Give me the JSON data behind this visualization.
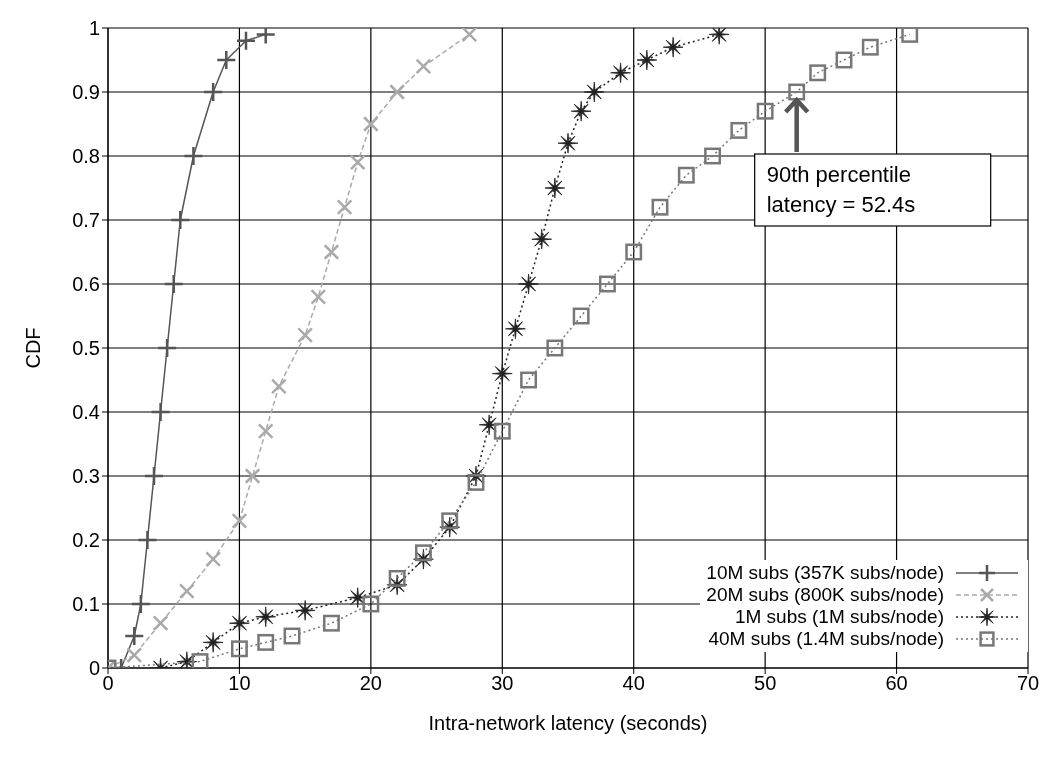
{
  "chart_data": {
    "type": "line",
    "xlabel": "Intra-network latency (seconds)",
    "ylabel": "CDF",
    "xlim": [
      0,
      70
    ],
    "xticks": [
      0,
      10,
      20,
      30,
      40,
      50,
      60,
      70
    ],
    "ylim": [
      0,
      1
    ],
    "yticks": [
      0,
      0.1,
      0.2,
      0.3,
      0.4,
      0.5,
      0.6,
      0.7,
      0.8,
      0.9,
      1
    ],
    "grid": true,
    "legend": "bottom right",
    "annotations": [
      {
        "text": "90th percentile\nlatency = 52.4s",
        "x": 52.4,
        "y": 0.9
      }
    ],
    "series": [
      {
        "name": "10M subs (357K subs/node)",
        "color": "#555555",
        "marker": "plus",
        "line_style": "solid",
        "x": [
          1,
          2,
          2.5,
          3,
          3.5,
          4,
          4.5,
          5,
          5.5,
          6.5,
          8,
          9,
          10.5,
          12
        ],
        "values": [
          0,
          0.05,
          0.1,
          0.2,
          0.3,
          0.4,
          0.5,
          0.6,
          0.7,
          0.8,
          0.9,
          0.95,
          0.98,
          0.99
        ]
      },
      {
        "name": "20M subs (800K subs/node)",
        "color": "#aaaaaa",
        "marker": "cross",
        "line_style": "dashed",
        "x": [
          0,
          2,
          4,
          6,
          8,
          10,
          11,
          12,
          13,
          15,
          16,
          17,
          18,
          19,
          20,
          22,
          24,
          27.5
        ],
        "values": [
          0,
          0.02,
          0.07,
          0.12,
          0.17,
          0.23,
          0.3,
          0.37,
          0.44,
          0.52,
          0.58,
          0.65,
          0.72,
          0.79,
          0.85,
          0.9,
          0.94,
          0.99
        ]
      },
      {
        "name": "1M subs (1M subs/node)",
        "color": "#222222",
        "marker": "star",
        "line_style": "dotted",
        "x": [
          4,
          6,
          8,
          10,
          12,
          15,
          19,
          22,
          24,
          26,
          28,
          29,
          30,
          31,
          32,
          33,
          34,
          35,
          36,
          37,
          39,
          41,
          43,
          46.5
        ],
        "values": [
          0,
          0.01,
          0.04,
          0.07,
          0.08,
          0.09,
          0.11,
          0.13,
          0.17,
          0.22,
          0.3,
          0.38,
          0.46,
          0.53,
          0.6,
          0.67,
          0.75,
          0.82,
          0.87,
          0.9,
          0.93,
          0.95,
          0.97,
          0.99
        ]
      },
      {
        "name": "40M subs (1.4M subs/node)",
        "color": "#777777",
        "marker": "square",
        "line_style": "dotted",
        "x": [
          0,
          7,
          10,
          12,
          14,
          17,
          20,
          22,
          24,
          26,
          28,
          30,
          32,
          34,
          36,
          38,
          40,
          42,
          44,
          46,
          48,
          50,
          52.4,
          54,
          56,
          58,
          61
        ],
        "values": [
          0,
          0.01,
          0.03,
          0.04,
          0.05,
          0.07,
          0.1,
          0.14,
          0.18,
          0.23,
          0.29,
          0.37,
          0.45,
          0.5,
          0.55,
          0.6,
          0.65,
          0.72,
          0.77,
          0.8,
          0.84,
          0.87,
          0.9,
          0.93,
          0.95,
          0.97,
          0.99
        ]
      }
    ]
  }
}
